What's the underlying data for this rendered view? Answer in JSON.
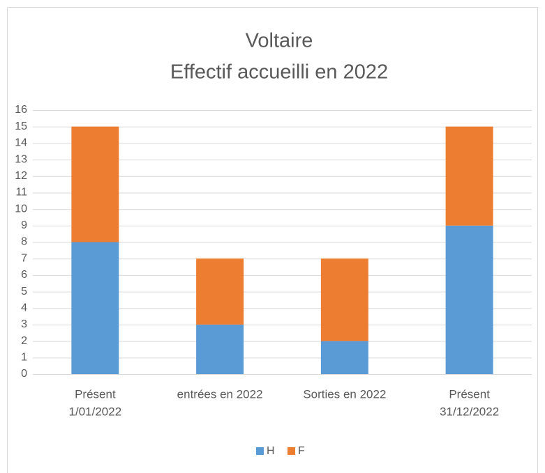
{
  "chart_data": {
    "type": "stacked_bar",
    "title": [
      "Voltaire",
      "Effectif accueilli en 2022"
    ],
    "categories": [
      [
        "Présent",
        "1/01/2022"
      ],
      [
        "entrées en 2022"
      ],
      [
        "Sorties en 2022"
      ],
      [
        "Présent",
        "31/12/2022"
      ]
    ],
    "series": [
      {
        "name": "H",
        "color": "#5b9bd5",
        "values": [
          8,
          3,
          2,
          9
        ]
      },
      {
        "name": "F",
        "color": "#ed7d31",
        "values": [
          7,
          4,
          5,
          6
        ]
      }
    ],
    "ylim": [
      0,
      16
    ],
    "yticks": [
      0,
      1,
      2,
      3,
      4,
      5,
      6,
      7,
      8,
      9,
      10,
      11,
      12,
      13,
      14,
      15,
      16
    ],
    "grid": true,
    "legend": "bottom"
  }
}
